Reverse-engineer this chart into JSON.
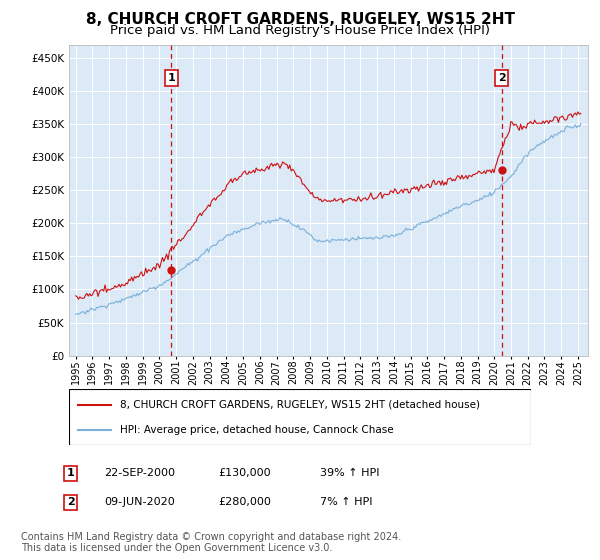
{
  "title": "8, CHURCH CROFT GARDENS, RUGELEY, WS15 2HT",
  "subtitle": "Price paid vs. HM Land Registry's House Price Index (HPI)",
  "title_fontsize": 11,
  "subtitle_fontsize": 9.5,
  "background_color": "#ffffff",
  "plot_bg_color": "#dce9f7",
  "grid_color": "#ffffff",
  "ylim": [
    0,
    470000
  ],
  "yticks": [
    0,
    50000,
    100000,
    150000,
    200000,
    250000,
    300000,
    350000,
    400000,
    450000
  ],
  "ytick_labels": [
    "£0",
    "£50K",
    "£100K",
    "£150K",
    "£200K",
    "£250K",
    "£300K",
    "£350K",
    "£400K",
    "£450K"
  ],
  "hpi_color": "#7ab0d8",
  "price_color": "#cc1111",
  "marker_color": "#cc1111",
  "annotation_box_color": "#cc1111",
  "dashed_line_color": "#cc1111",
  "legend_label_price": "8, CHURCH CROFT GARDENS, RUGELEY, WS15 2HT (detached house)",
  "legend_label_hpi": "HPI: Average price, detached house, Cannock Chase",
  "sale1_date": "22-SEP-2000",
  "sale1_price": 130000,
  "sale1_hpi_pct": "39% ↑ HPI",
  "sale1_label": "1",
  "sale1_year": 2000.72,
  "sale2_date": "09-JUN-2020",
  "sale2_price": 280000,
  "sale2_hpi_pct": "7% ↑ HPI",
  "sale2_label": "2",
  "sale2_year": 2020.44,
  "footer": "Contains HM Land Registry data © Crown copyright and database right 2024.\nThis data is licensed under the Open Government Licence v3.0.",
  "footer_fontsize": 7,
  "xtick_years": [
    1995,
    1996,
    1997,
    1998,
    1999,
    2000,
    2001,
    2002,
    2003,
    2004,
    2005,
    2006,
    2007,
    2008,
    2009,
    2010,
    2011,
    2012,
    2013,
    2014,
    2015,
    2016,
    2017,
    2018,
    2019,
    2020,
    2021,
    2022,
    2023,
    2024,
    2025
  ]
}
